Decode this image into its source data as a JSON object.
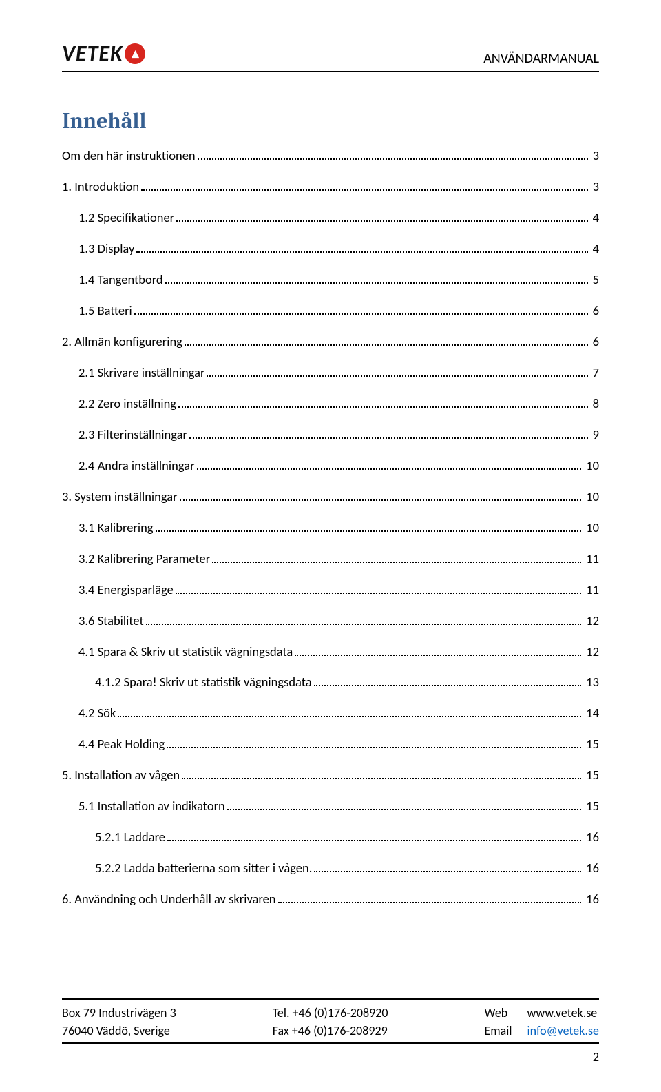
{
  "header": {
    "logo_text": "VETEK",
    "logo_mark": "▴",
    "doc_title": "ANVÄNDARMANUAL"
  },
  "toc_title": "Innehåll",
  "toc": [
    {
      "label": "Om den här instruktionen",
      "page": "3",
      "indent": 0
    },
    {
      "label": "1. Introduktion",
      "page": "3",
      "indent": 0
    },
    {
      "label": "1.2 Specifikationer",
      "page": "4",
      "indent": 1
    },
    {
      "label": "1.3 Display",
      "page": "4",
      "indent": 1
    },
    {
      "label": "1.4 Tangentbord",
      "page": "5",
      "indent": 1
    },
    {
      "label": "1.5 Batteri",
      "page": "6",
      "indent": 1
    },
    {
      "label": "2. Allmän konfigurering",
      "page": "6",
      "indent": 0
    },
    {
      "label": "2.1 Skrivare inställningar",
      "page": "7",
      "indent": 1
    },
    {
      "label": "2.2 Zero inställning",
      "page": "8",
      "indent": 1
    },
    {
      "label": "2.3 Filterinställningar",
      "page": "9",
      "indent": 1
    },
    {
      "label": "2.4 Andra inställningar",
      "page": "10",
      "indent": 1
    },
    {
      "label": "3. System inställningar",
      "page": "10",
      "indent": 0
    },
    {
      "label": "3.1 Kalibrering",
      "page": "10",
      "indent": 1
    },
    {
      "label": "3.2 Kalibrering Parameter",
      "page": "11",
      "indent": 1
    },
    {
      "label": "3.4 Energisparläge",
      "page": "11",
      "indent": 1
    },
    {
      "label": "3.6 Stabilitet",
      "page": "12",
      "indent": 1
    },
    {
      "label": "4.1 Spara & Skriv ut statistik vägningsdata",
      "page": "12",
      "indent": 1
    },
    {
      "label": "4.1.2 Spara! Skriv ut statistik vägningsdata",
      "page": "13",
      "indent": 2
    },
    {
      "label": "4.2 Sök",
      "page": "14",
      "indent": 1
    },
    {
      "label": "4.4 Peak Holding",
      "page": "15",
      "indent": 1
    },
    {
      "label": "5. Installation av vågen",
      "page": "15",
      "indent": 0
    },
    {
      "label": "5.1 Installation av indikatorn",
      "page": "15",
      "indent": 1
    },
    {
      "label": "5.2.1 Laddare",
      "page": "16",
      "indent": 2
    },
    {
      "label": "5.2.2 Ladda batterierna som sitter i vågen.",
      "page": "16",
      "indent": 2
    },
    {
      "label": "6. Användning och Underhåll av skrivaren",
      "page": "16",
      "indent": 0
    }
  ],
  "footer": {
    "address1": "Box 79 Industrivägen 3",
    "address2": "76040 Väddö, Sverige",
    "tel": "Tel. +46 (0)176-208920",
    "fax": "Fax +46 (0)176-208929",
    "web_label": "Web",
    "web_value": "www.vetek.se",
    "email_label": "Email",
    "email_value": "info@vetek.se",
    "page_number": "2"
  }
}
